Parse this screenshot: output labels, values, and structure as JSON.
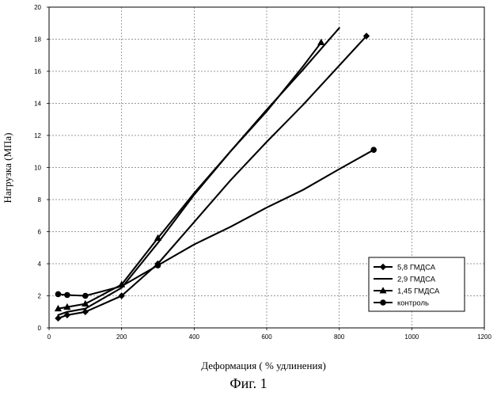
{
  "chart_data": {
    "type": "line",
    "title": "",
    "xlabel": "Деформация ( % удлинения)",
    "ylabel": "Нагрузка (МПа)",
    "xlim": [
      0,
      1200
    ],
    "ylim": [
      0,
      20
    ],
    "xticks": [
      0,
      200,
      400,
      600,
      800,
      1000,
      1200
    ],
    "yticks": [
      0,
      2,
      4,
      6,
      8,
      10,
      12,
      14,
      16,
      18,
      20
    ],
    "grid": true,
    "legend_position": "bottom-right",
    "series": [
      {
        "name": "5,8   ГМДСА",
        "marker": "diamond",
        "x": [
          25,
          50,
          100,
          200,
          300,
          400,
          500,
          600,
          700,
          875
        ],
        "y": [
          0.6,
          0.8,
          1.0,
          2.0,
          4.0,
          6.6,
          9.2,
          11.6,
          13.9,
          18.2
        ]
      },
      {
        "name": "2,9   ГМДСА",
        "marker": "none",
        "x": [
          25,
          50,
          100,
          200,
          300,
          400,
          500,
          600,
          700,
          800
        ],
        "y": [
          0.8,
          1.0,
          1.2,
          2.5,
          5.3,
          8.3,
          11.0,
          13.6,
          16.1,
          18.7
        ]
      },
      {
        "name": "1,45 ГМДСА",
        "marker": "triangle",
        "x": [
          25,
          50,
          100,
          200,
          300,
          400,
          500,
          600,
          700,
          750
        ],
        "y": [
          1.2,
          1.3,
          1.5,
          2.7,
          5.6,
          8.4,
          11.0,
          13.5,
          16.3,
          17.8
        ]
      },
      {
        "name": "контроль",
        "marker": "circle",
        "x": [
          25,
          50,
          100,
          200,
          300,
          400,
          500,
          600,
          700,
          800,
          895
        ],
        "y": [
          2.1,
          2.05,
          2.0,
          2.6,
          3.9,
          5.2,
          6.3,
          7.5,
          8.6,
          9.9,
          11.1
        ]
      }
    ]
  },
  "caption": "Фиг. 1",
  "colors": {
    "line": "#000000",
    "grid": "#777777",
    "background": "#ffffff"
  }
}
